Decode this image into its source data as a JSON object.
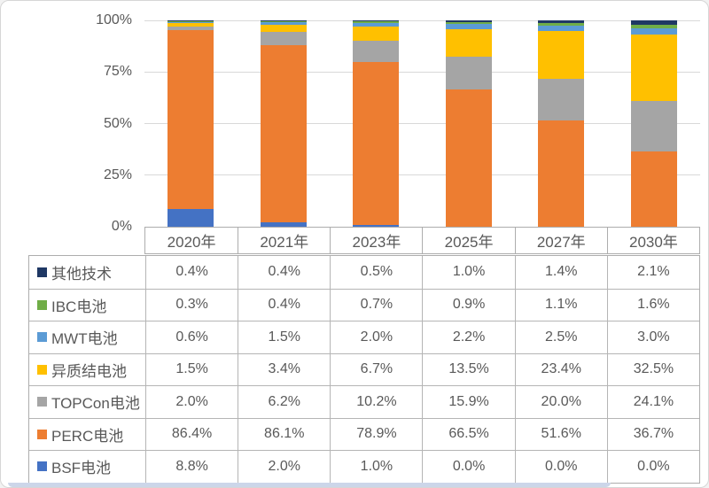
{
  "page": {
    "background": "#ffffff",
    "border_color": "#d6d6d6",
    "accent_strip_color": "#ccd6e9",
    "table_border_color": "#adadad",
    "text_color": "#595959"
  },
  "chart_data": {
    "type": "bar",
    "stacked": true,
    "title": "",
    "xlabel": "",
    "ylabel": "",
    "categories": [
      "2020年",
      "2021年",
      "2023年",
      "2025年",
      "2027年",
      "2030年"
    ],
    "series": [
      {
        "name": "其他技术",
        "color": "#1f3864",
        "values": [
          0.4,
          0.4,
          0.5,
          1.0,
          1.4,
          2.1
        ]
      },
      {
        "name": "IBC电池",
        "color": "#70ad47",
        "values": [
          0.3,
          0.4,
          0.7,
          0.9,
          1.1,
          1.6
        ]
      },
      {
        "name": "MWT电池",
        "color": "#5b9bd5",
        "values": [
          0.6,
          1.5,
          2.0,
          2.2,
          2.5,
          3.0
        ]
      },
      {
        "name": "异质结电池",
        "color": "#ffc000",
        "values": [
          1.5,
          3.4,
          6.7,
          13.5,
          23.4,
          32.5
        ]
      },
      {
        "name": "TOPCon电池",
        "color": "#a5a5a5",
        "values": [
          2.0,
          6.2,
          10.2,
          15.9,
          20.0,
          24.1
        ]
      },
      {
        "name": "PERC电池",
        "color": "#ed7d31",
        "values": [
          86.4,
          86.1,
          78.9,
          66.5,
          51.6,
          36.7
        ]
      },
      {
        "name": "BSF电池",
        "color": "#4472c4",
        "values": [
          8.8,
          2.0,
          1.0,
          0.0,
          0.0,
          0.0
        ]
      }
    ],
    "y_ticks": [
      {
        "label": "100%",
        "value": 100
      },
      {
        "label": "75%",
        "value": 75
      },
      {
        "label": "50%",
        "value": 50
      },
      {
        "label": "25%",
        "value": 25
      },
      {
        "label": "0%",
        "value": 0
      }
    ],
    "ylim": [
      0,
      100
    ],
    "grid": true,
    "gridline_color": "#d9d9d9",
    "legend_position": "table-left-column"
  },
  "table": {
    "rows": [
      {
        "label": "其他技术",
        "swatch": "#1f3864",
        "cells": [
          "0.4%",
          "0.4%",
          "0.5%",
          "1.0%",
          "1.4%",
          "2.1%"
        ]
      },
      {
        "label": "IBC电池",
        "swatch": "#70ad47",
        "cells": [
          "0.3%",
          "0.4%",
          "0.7%",
          "0.9%",
          "1.1%",
          "1.6%"
        ]
      },
      {
        "label": "MWT电池",
        "swatch": "#5b9bd5",
        "cells": [
          "0.6%",
          "1.5%",
          "2.0%",
          "2.2%",
          "2.5%",
          "3.0%"
        ]
      },
      {
        "label": "异质结电池",
        "swatch": "#ffc000",
        "cells": [
          "1.5%",
          "3.4%",
          "6.7%",
          "13.5%",
          "23.4%",
          "32.5%"
        ]
      },
      {
        "label": "TOPCon电池",
        "swatch": "#a5a5a5",
        "cells": [
          "2.0%",
          "6.2%",
          "10.2%",
          "15.9%",
          "20.0%",
          "24.1%"
        ]
      },
      {
        "label": "PERC电池",
        "swatch": "#ed7d31",
        "cells": [
          "86.4%",
          "86.1%",
          "78.9%",
          "66.5%",
          "51.6%",
          "36.7%"
        ]
      },
      {
        "label": "BSF电池",
        "swatch": "#4472c4",
        "cells": [
          "8.8%",
          "2.0%",
          "1.0%",
          "0.0%",
          "0.0%",
          "0.0%"
        ]
      }
    ]
  }
}
